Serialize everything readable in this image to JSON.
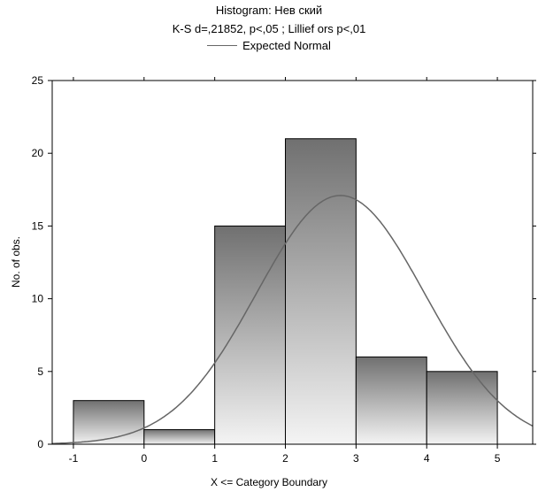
{
  "chart_data": {
    "type": "bar",
    "title": "Histogram: Нев ский",
    "subtitle": "K-S d=,21852, p<,05 ; Lillief ors p<,01",
    "legend": [
      "Expected Normal"
    ],
    "xlabel": "X <= Category Boundary",
    "ylabel": "No. of obs.",
    "xlim": [
      -1.3,
      5.5
    ],
    "ylim": [
      0,
      25
    ],
    "x_ticks": [
      -1,
      0,
      1,
      2,
      3,
      4,
      5
    ],
    "y_ticks": [
      0,
      5,
      10,
      15,
      20,
      25
    ],
    "bins": [
      {
        "from": -1,
        "to": 0,
        "value": 3
      },
      {
        "from": 0,
        "to": 1,
        "value": 1
      },
      {
        "from": 1,
        "to": 2,
        "value": 15
      },
      {
        "from": 2,
        "to": 3,
        "value": 21
      },
      {
        "from": 3,
        "to": 4,
        "value": 6
      },
      {
        "from": 4,
        "to": 5,
        "value": 5
      }
    ],
    "expected_normal": {
      "mean": 2.78,
      "sd": 1.19,
      "n": 51,
      "bin_width": 1
    },
    "grid": false,
    "colors": {
      "bar_top": "#707070",
      "bar_bottom": "#f4f4f4",
      "bar_stroke": "#000000",
      "curve": "#666666"
    }
  }
}
